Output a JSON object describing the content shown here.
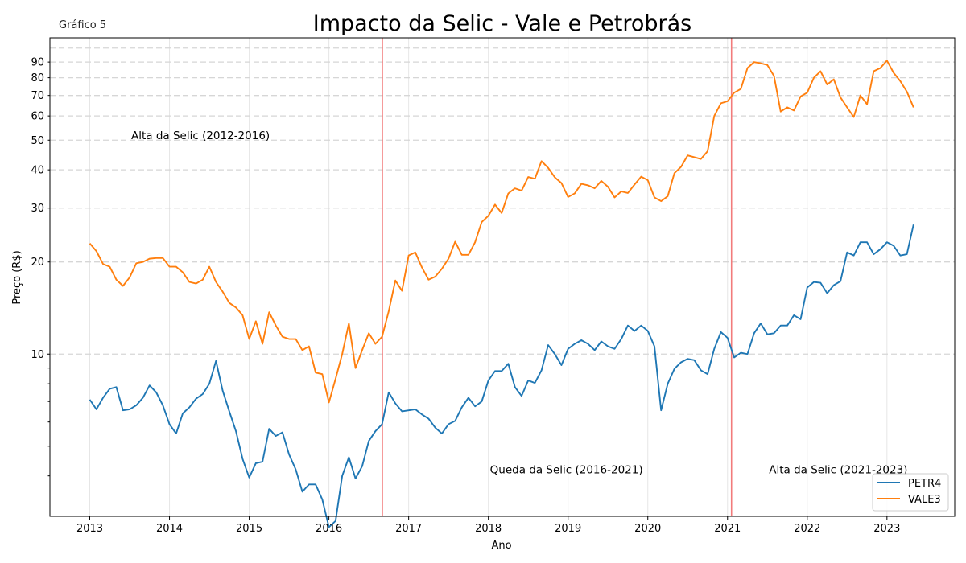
{
  "header": {
    "corner_label": "Gráfico 5"
  },
  "chart_data": {
    "type": "line",
    "title": "Impacto da Selic - Vale e Petrobrás",
    "xlabel": "Ano",
    "ylabel": "Preço (R$)",
    "yscale": "log",
    "xlim": [
      2012.5,
      2023.85
    ],
    "ylim": [
      2.95,
      108
    ],
    "x_ticks": [
      2013,
      2014,
      2015,
      2016,
      2017,
      2018,
      2019,
      2020,
      2021,
      2022,
      2023
    ],
    "x_tick_labels": [
      "2013",
      "2014",
      "2015",
      "2016",
      "2017",
      "2018",
      "2019",
      "2020",
      "2021",
      "2022",
      "2023"
    ],
    "y_major_ticks": [
      10
    ],
    "y_minor_ticks": [
      20,
      30,
      40,
      50,
      60,
      70,
      80,
      90
    ],
    "y_tick_labels": [
      "10",
      "20",
      "30",
      "40",
      "50",
      "60",
      "70",
      "80",
      "90"
    ],
    "y_minor_unlabeled": [
      4,
      5,
      6,
      7,
      8,
      9
    ],
    "grid": true,
    "grid_style": "x solid light gray, y dashed gray",
    "legend_position": "lower-right",
    "vertical_lines": [
      2016.67,
      2021.05
    ],
    "vertical_line_color": "#f27b7b",
    "annotations": [
      {
        "text": "Alta da Selic (2012-2016)",
        "x": 2013.52,
        "y": 52
      },
      {
        "text": "Queda da Selic (2016-2021)",
        "x": 2018.02,
        "y": 4.2
      },
      {
        "text": "Alta da Selic (2021-2023)",
        "x": 2021.52,
        "y": 4.2
      }
    ],
    "series": [
      {
        "name": "PETR4",
        "color": "#1f77b4",
        "values": [
          7.1,
          6.6,
          7.2,
          7.7,
          7.8,
          6.55,
          6.6,
          6.8,
          7.2,
          7.9,
          7.5,
          6.8,
          5.9,
          5.5,
          6.4,
          6.7,
          7.15,
          7.4,
          8.0,
          9.5,
          7.6,
          6.5,
          5.6,
          4.55,
          3.95,
          4.4,
          4.45,
          5.7,
          5.4,
          5.55,
          4.7,
          4.2,
          3.55,
          3.75,
          3.75,
          3.35,
          2.72,
          2.85,
          4.0,
          4.6,
          3.92,
          4.3,
          5.2,
          5.6,
          5.9,
          7.5,
          6.9,
          6.5,
          6.55,
          6.6,
          6.35,
          6.15,
          5.75,
          5.5,
          5.9,
          6.05,
          6.7,
          7.2,
          6.75,
          7.0,
          8.2,
          8.8,
          8.8,
          9.3,
          7.8,
          7.3,
          8.2,
          8.05,
          8.85,
          10.7,
          10.0,
          9.2,
          10.4,
          10.8,
          11.1,
          10.8,
          10.3,
          11.0,
          10.6,
          10.4,
          11.2,
          12.4,
          11.9,
          12.4,
          11.9,
          10.6,
          6.55,
          8.0,
          8.95,
          9.4,
          9.65,
          9.55,
          8.85,
          8.6,
          10.4,
          11.8,
          11.3,
          9.75,
          10.1,
          10.0,
          11.7,
          12.6,
          11.6,
          11.7,
          12.4,
          12.4,
          13.4,
          13.0,
          16.5,
          17.2,
          17.1,
          15.8,
          16.8,
          17.3,
          21.5,
          21.0,
          23.2,
          23.2,
          21.2,
          22.0,
          23.2,
          22.6,
          21.0,
          21.2,
          26.5
        ]
      },
      {
        "name": "VALE3",
        "color": "#ff7f0e",
        "values": [
          23.0,
          21.7,
          19.7,
          19.3,
          17.5,
          16.7,
          17.8,
          19.8,
          20.0,
          20.5,
          20.6,
          20.6,
          19.3,
          19.3,
          18.5,
          17.2,
          17.0,
          17.5,
          19.3,
          17.2,
          16.0,
          14.7,
          14.2,
          13.4,
          11.2,
          12.8,
          10.8,
          13.7,
          12.4,
          11.4,
          11.2,
          11.2,
          10.3,
          10.6,
          8.7,
          8.6,
          6.95,
          8.3,
          10.0,
          12.6,
          9.0,
          10.3,
          11.7,
          10.8,
          11.4,
          13.8,
          17.4,
          16.1,
          21.0,
          21.5,
          19.2,
          17.5,
          17.9,
          19.0,
          20.5,
          23.3,
          21.1,
          21.1,
          23.2,
          27.0,
          28.3,
          30.8,
          28.9,
          33.5,
          34.8,
          34.2,
          37.9,
          37.4,
          42.7,
          40.6,
          37.8,
          36.2,
          32.6,
          33.5,
          36.0,
          35.6,
          34.8,
          36.8,
          35.2,
          32.5,
          34.0,
          33.6,
          35.8,
          38.0,
          37.0,
          32.5,
          31.6,
          32.8,
          39.0,
          40.9,
          44.6,
          44.0,
          43.4,
          46.0,
          60.0,
          66.0,
          67.0,
          71.5,
          73.5,
          86.0,
          90.0,
          89.2,
          88.0,
          81.0,
          62.0,
          64.0,
          62.5,
          69.5,
          71.5,
          80.0,
          84.0,
          76.0,
          79.0,
          69.0,
          64.0,
          59.5,
          70.0,
          65.5,
          84.0,
          86.0,
          91.0,
          83.0,
          78.0,
          72.0,
          64.0
        ]
      }
    ]
  }
}
